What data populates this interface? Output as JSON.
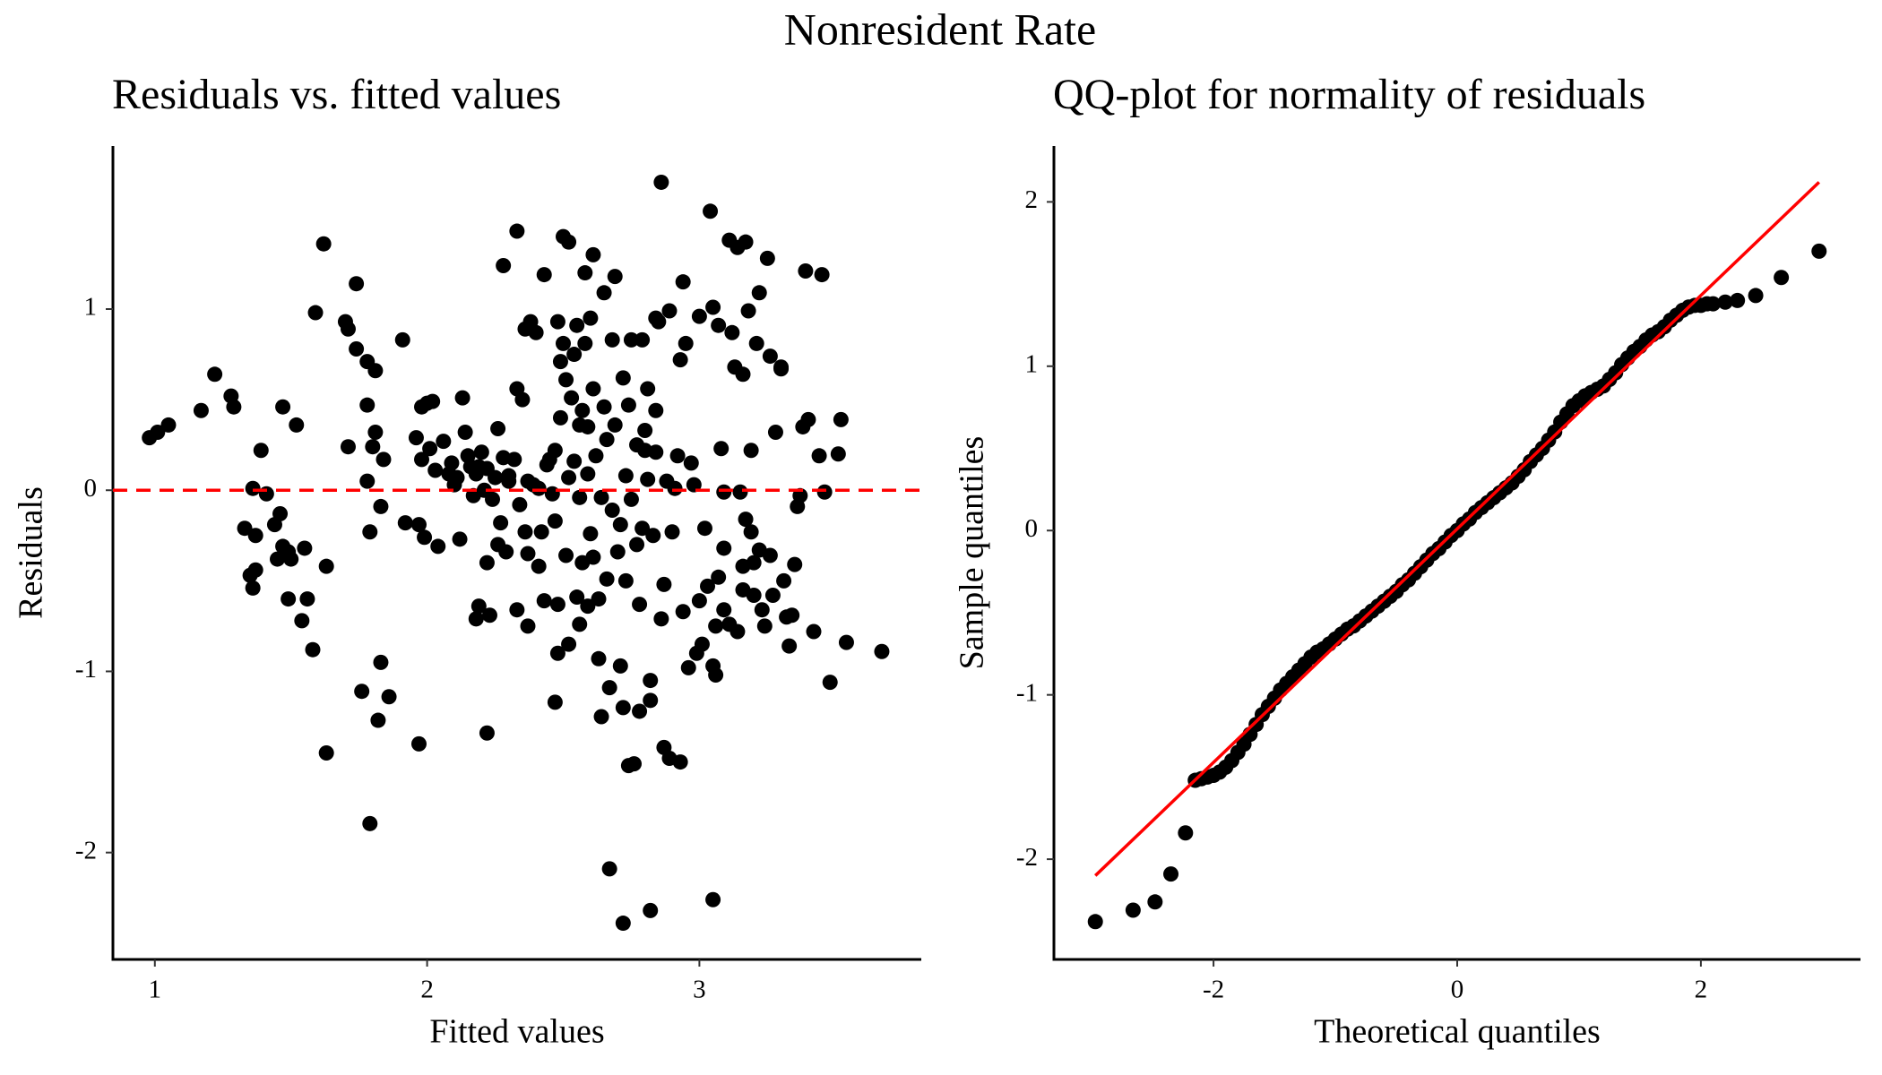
{
  "title": "Nonresident Rate",
  "chart_data": [
    {
      "type": "scatter",
      "title": "Residuals vs. fitted values",
      "xlabel": "Fitted values",
      "ylabel": "Residuals",
      "color": "#000000",
      "hline": 0,
      "hline_color": "#ff0000",
      "xlim": [
        0.846,
        3.815
      ],
      "ylim": [
        -2.59,
        1.9
      ],
      "xticks": [
        1,
        2,
        3
      ],
      "yticks": [
        -2,
        -1,
        0,
        1
      ],
      "x": [
        0.98,
        1.01,
        1.05,
        1.17,
        1.22,
        1.28,
        1.29,
        1.33,
        1.35,
        1.36,
        1.36,
        1.37,
        1.39,
        1.41,
        1.37,
        1.44,
        1.45,
        1.46,
        1.47,
        1.47,
        1.49,
        1.5,
        1.49,
        1.52,
        1.54,
        1.55,
        1.56,
        1.58,
        1.59,
        1.62,
        1.63,
        1.63,
        1.7,
        1.71,
        1.71,
        1.74,
        1.74,
        1.76,
        1.78,
        1.78,
        1.78,
        1.79,
        1.79,
        1.8,
        1.81,
        1.81,
        1.82,
        1.83,
        1.83,
        1.84,
        1.86,
        1.91,
        1.92,
        1.96,
        1.97,
        1.97,
        1.98,
        1.98,
        1.99,
        2.0,
        2.01,
        2.02,
        2.03,
        2.04,
        2.06,
        2.08,
        2.09,
        2.1,
        2.11,
        2.12,
        2.13,
        2.14,
        2.15,
        2.16,
        2.17,
        2.18,
        2.18,
        2.19,
        2.19,
        2.2,
        2.21,
        2.22,
        2.22,
        2.22,
        2.23,
        2.24,
        2.25,
        2.26,
        2.26,
        2.27,
        2.28,
        2.28,
        2.29,
        2.3,
        2.3,
        2.32,
        2.33,
        2.33,
        2.33,
        2.34,
        2.35,
        2.36,
        2.36,
        2.37,
        2.37,
        2.37,
        2.38,
        2.39,
        2.4,
        2.41,
        2.41,
        2.42,
        2.43,
        2.43,
        2.44,
        2.45,
        2.46,
        2.47,
        2.47,
        2.47,
        2.48,
        2.48,
        2.48,
        2.49,
        2.49,
        2.5,
        2.5,
        2.51,
        2.51,
        2.52,
        2.52,
        2.52,
        2.53,
        2.54,
        2.54,
        2.55,
        2.55,
        2.56,
        2.56,
        2.56,
        2.57,
        2.57,
        2.58,
        2.58,
        2.59,
        2.59,
        2.59,
        2.6,
        2.6,
        2.61,
        2.61,
        2.61,
        2.62,
        2.63,
        2.63,
        2.64,
        2.64,
        2.65,
        2.65,
        2.66,
        2.66,
        2.67,
        2.67,
        2.68,
        2.68,
        2.69,
        2.69,
        2.7,
        2.71,
        2.71,
        2.72,
        2.72,
        2.72,
        2.73,
        2.73,
        2.74,
        2.74,
        2.75,
        2.75,
        2.76,
        2.77,
        2.77,
        2.78,
        2.78,
        2.79,
        2.79,
        2.8,
        2.8,
        2.81,
        2.81,
        2.82,
        2.82,
        2.82,
        2.83,
        2.84,
        2.84,
        2.84,
        2.85,
        2.86,
        2.86,
        2.87,
        2.87,
        2.88,
        2.89,
        2.89,
        2.9,
        2.91,
        2.92,
        2.93,
        2.93,
        2.94,
        2.94,
        2.95,
        2.96,
        2.97,
        2.98,
        2.99,
        3.0,
        3.0,
        3.01,
        3.02,
        3.03,
        3.04,
        3.05,
        3.05,
        3.05,
        3.06,
        3.06,
        3.07,
        3.07,
        3.08,
        3.09,
        3.09,
        3.09,
        3.11,
        3.11,
        3.12,
        3.13,
        3.14,
        3.14,
        3.15,
        3.16,
        3.16,
        3.16,
        3.17,
        3.17,
        3.18,
        3.19,
        3.19,
        3.2,
        3.2,
        3.21,
        3.22,
        3.22,
        3.23,
        3.24,
        3.25,
        3.26,
        3.26,
        3.27,
        3.28,
        3.3,
        3.3,
        3.31,
        3.32,
        3.33,
        3.34,
        3.35,
        3.36,
        3.37,
        3.38,
        3.39,
        3.4,
        3.42,
        3.44,
        3.45,
        3.46,
        3.48,
        3.51,
        3.52,
        3.54,
        3.67
      ],
      "y": [
        0.29,
        0.32,
        0.36,
        0.44,
        0.64,
        0.52,
        0.46,
        -0.21,
        -0.47,
        -0.54,
        0.01,
        -0.25,
        0.22,
        -0.02,
        -0.44,
        -0.19,
        -0.38,
        -0.13,
        0.46,
        -0.31,
        -0.34,
        -0.38,
        -0.6,
        0.36,
        -0.72,
        -0.32,
        -0.6,
        -0.88,
        0.98,
        1.36,
        -1.45,
        -0.42,
        0.93,
        0.89,
        0.24,
        1.14,
        0.78,
        -1.11,
        0.05,
        0.47,
        0.71,
        -1.84,
        -0.23,
        0.24,
        0.32,
        0.66,
        -1.27,
        -0.09,
        -0.95,
        0.17,
        -1.14,
        0.83,
        -0.18,
        0.29,
        -0.19,
        -1.4,
        0.46,
        0.17,
        -0.26,
        0.48,
        0.23,
        0.49,
        0.11,
        -0.31,
        0.27,
        0.09,
        0.15,
        0.03,
        0.07,
        -0.27,
        0.51,
        0.32,
        0.19,
        0.13,
        -0.03,
        -0.71,
        0.09,
        -0.64,
        0.13,
        0.21,
        0.0,
        0.12,
        -0.4,
        -1.34,
        -0.69,
        -0.05,
        0.07,
        -0.3,
        0.34,
        -0.18,
        0.18,
        1.24,
        -0.34,
        0.05,
        0.08,
        0.17,
        1.43,
        -0.66,
        0.56,
        -0.08,
        0.5,
        -0.23,
        0.89,
        -0.75,
        -0.35,
        0.05,
        0.93,
        0.03,
        0.87,
        0.01,
        -0.42,
        -0.23,
        1.19,
        -0.61,
        0.14,
        0.17,
        -0.02,
        -1.17,
        0.22,
        -0.17,
        -0.9,
        0.93,
        -0.63,
        0.4,
        0.71,
        1.4,
        0.81,
        0.61,
        -0.36,
        -0.85,
        1.37,
        0.07,
        0.51,
        0.75,
        0.16,
        -0.59,
        0.91,
        -0.04,
        0.36,
        -0.74,
        0.44,
        -0.4,
        0.81,
        1.2,
        0.09,
        -0.64,
        0.35,
        0.95,
        -0.24,
        0.56,
        1.3,
        -0.37,
        0.19,
        -0.6,
        -0.93,
        -1.25,
        -0.04,
        1.09,
        0.46,
        -0.49,
        0.28,
        -2.09,
        -1.09,
        0.83,
        -0.11,
        1.18,
        0.36,
        -0.34,
        -0.97,
        -0.19,
        -1.2,
        0.62,
        -2.39,
        -0.5,
        0.08,
        0.47,
        -1.52,
        0.83,
        -0.05,
        -1.51,
        0.25,
        -0.3,
        -1.22,
        -0.63,
        0.83,
        -0.21,
        0.22,
        0.33,
        0.56,
        0.06,
        -2.32,
        -1.05,
        -1.16,
        -0.25,
        0.95,
        0.44,
        0.21,
        0.93,
        1.7,
        -0.71,
        -1.42,
        -0.52,
        0.05,
        -1.48,
        0.99,
        -0.23,
        0.01,
        0.19,
        -1.5,
        0.72,
        1.15,
        -0.67,
        0.81,
        -0.98,
        0.15,
        0.03,
        -0.9,
        -0.61,
        0.96,
        -0.85,
        -0.21,
        -0.53,
        1.54,
        -2.26,
        1.01,
        -0.97,
        -0.75,
        -1.02,
        -0.48,
        0.91,
        0.23,
        -0.66,
        -0.32,
        -0.01,
        -0.74,
        1.38,
        0.87,
        0.68,
        1.34,
        -0.78,
        -0.01,
        0.64,
        -0.42,
        -0.55,
        1.37,
        -0.16,
        0.99,
        0.22,
        -0.23,
        -0.4,
        -0.58,
        0.81,
        -0.33,
        1.09,
        -0.66,
        -0.75,
        1.28,
        -0.36,
        0.74,
        -0.58,
        0.32,
        0.68,
        0.67,
        -0.5,
        -0.7,
        -0.86,
        -0.69,
        -0.41,
        -0.09,
        -0.03,
        0.35,
        1.21,
        0.39,
        -0.78,
        0.19,
        1.19,
        -0.01,
        -1.06,
        0.2,
        0.39,
        -0.84,
        -0.89
      ]
    },
    {
      "type": "qq",
      "title": "QQ-plot for normality of residuals",
      "xlabel": "Theoretical quantiles",
      "ylabel": "Sample quantiles",
      "color": "#000000",
      "xlim": [
        -3.31,
        3.31
      ],
      "ylim": [
        -2.61,
        2.34
      ],
      "xticks": [
        -2,
        0,
        2
      ],
      "yticks": [
        -2,
        -1,
        0,
        1,
        2
      ],
      "line": {
        "x": [
          -2.97,
          2.97
        ],
        "y": [
          -2.1,
          2.12
        ],
        "color": "#ff0000"
      },
      "x": [
        -2.97,
        -2.66,
        -2.48,
        -2.35,
        -2.23,
        -2.15,
        -2.1,
        -2.05,
        -2.0,
        -1.95,
        -1.9,
        -1.85,
        -1.8,
        -1.75,
        -1.7,
        -1.65,
        -1.6,
        -1.55,
        -1.5,
        -1.45,
        -1.4,
        -1.35,
        -1.3,
        -1.25,
        -1.2,
        -1.15,
        -1.1,
        -1.05,
        -1.0,
        -0.95,
        -0.9,
        -0.85,
        -0.8,
        -0.75,
        -0.7,
        -0.65,
        -0.6,
        -0.55,
        -0.5,
        -0.45,
        -0.4,
        -0.35,
        -0.3,
        -0.25,
        -0.2,
        -0.15,
        -0.1,
        -0.05,
        0.0,
        0.05,
        0.1,
        0.15,
        0.2,
        0.25,
        0.3,
        0.35,
        0.4,
        0.45,
        0.5,
        0.55,
        0.6,
        0.65,
        0.7,
        0.75,
        0.8,
        0.85,
        0.9,
        0.95,
        1.0,
        1.05,
        1.1,
        1.15,
        1.2,
        1.25,
        1.3,
        1.35,
        1.4,
        1.45,
        1.5,
        1.55,
        1.6,
        1.65,
        1.7,
        1.75,
        1.8,
        1.85,
        1.9,
        1.95,
        2.0,
        2.05,
        2.1,
        2.2,
        2.3,
        2.45,
        2.66,
        2.97
      ],
      "y": [
        -2.38,
        -2.31,
        -2.26,
        -2.09,
        -1.84,
        -1.52,
        -1.51,
        -1.5,
        -1.49,
        -1.47,
        -1.44,
        -1.4,
        -1.35,
        -1.3,
        -1.24,
        -1.18,
        -1.12,
        -1.07,
        -1.02,
        -0.97,
        -0.93,
        -0.89,
        -0.85,
        -0.81,
        -0.77,
        -0.74,
        -0.72,
        -0.69,
        -0.66,
        -0.63,
        -0.6,
        -0.58,
        -0.55,
        -0.52,
        -0.49,
        -0.46,
        -0.43,
        -0.4,
        -0.37,
        -0.33,
        -0.3,
        -0.26,
        -0.22,
        -0.18,
        -0.14,
        -0.11,
        -0.07,
        -0.03,
        0.0,
        0.04,
        0.07,
        0.11,
        0.14,
        0.17,
        0.2,
        0.23,
        0.26,
        0.29,
        0.33,
        0.37,
        0.42,
        0.46,
        0.5,
        0.55,
        0.6,
        0.66,
        0.71,
        0.76,
        0.79,
        0.82,
        0.84,
        0.86,
        0.88,
        0.92,
        0.96,
        1.01,
        1.05,
        1.09,
        1.12,
        1.16,
        1.19,
        1.21,
        1.24,
        1.28,
        1.31,
        1.34,
        1.36,
        1.37,
        1.37,
        1.38,
        1.38,
        1.39,
        1.4,
        1.43,
        1.54,
        1.7
      ]
    }
  ]
}
